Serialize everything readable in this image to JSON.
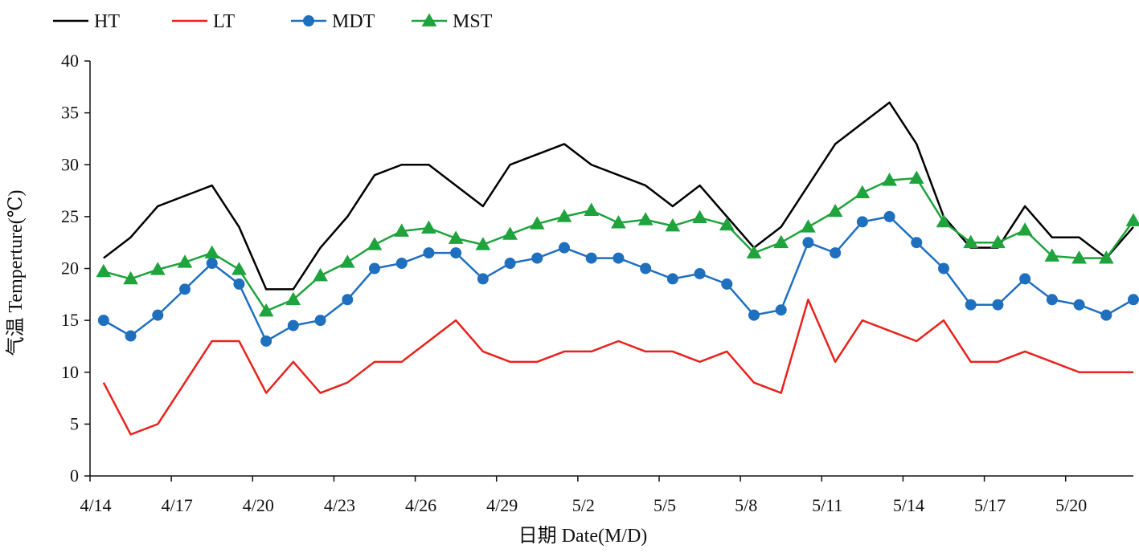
{
  "chart_data": {
    "type": "line",
    "xlabel": "日期 Date(M/D)",
    "ylabel": "气温 Temperture(℃)",
    "ylim": [
      0,
      40
    ],
    "yticks": [
      0,
      5,
      10,
      15,
      20,
      25,
      30,
      35,
      40
    ],
    "grid": false,
    "legend_position": "top-left",
    "x": [
      "4/14",
      "4/15",
      "4/16",
      "4/17",
      "4/18",
      "4/19",
      "4/20",
      "4/21",
      "4/22",
      "4/23",
      "4/24",
      "4/25",
      "4/26",
      "4/27",
      "4/28",
      "4/29",
      "4/30",
      "5/1",
      "5/2",
      "5/3",
      "5/4",
      "5/5",
      "5/6",
      "5/7",
      "5/8",
      "5/9",
      "5/10",
      "5/11",
      "5/12",
      "5/13",
      "5/14",
      "5/15",
      "5/16",
      "5/17",
      "5/18",
      "5/19",
      "5/20",
      "5/21",
      "5/22"
    ],
    "x_tick_labels": [
      "4/14",
      "4/17",
      "4/20",
      "4/23",
      "4/26",
      "4/29",
      "5/2",
      "5/5",
      "5/8",
      "5/11",
      "5/14",
      "5/17",
      "5/20"
    ],
    "series": [
      {
        "name": "HT",
        "color": "#000000",
        "marker": "none",
        "values": [
          21,
          23,
          26,
          27,
          28,
          24,
          18,
          18,
          22,
          25,
          29,
          30,
          30,
          28,
          26,
          30,
          31,
          32,
          30,
          29,
          28,
          26,
          28,
          25,
          22,
          24,
          28,
          32,
          34,
          36,
          32,
          25,
          22,
          22,
          26,
          23,
          23,
          21,
          24
        ]
      },
      {
        "name": "LT",
        "color": "#e8221c",
        "marker": "none",
        "values": [
          9,
          4,
          5,
          9,
          13,
          13,
          8,
          11,
          8,
          9,
          11,
          11,
          13,
          15,
          12,
          11,
          11,
          12,
          12,
          13,
          12,
          12,
          11,
          12,
          9,
          8,
          17,
          11,
          15,
          14,
          13,
          15,
          11,
          11,
          12,
          11,
          10,
          10,
          10
        ]
      },
      {
        "name": "MDT",
        "color": "#1f6fbf",
        "marker": "circle",
        "values": [
          15,
          13.5,
          15.5,
          18,
          20.5,
          18.5,
          13,
          14.5,
          15,
          17,
          20,
          20.5,
          21.5,
          21.5,
          19,
          20.5,
          21,
          22,
          21,
          21,
          20,
          19,
          19.5,
          18.5,
          15.5,
          16,
          22.5,
          21.5,
          24.5,
          25,
          22.5,
          20,
          16.5,
          16.5,
          19,
          17,
          16.5,
          15.5,
          17
        ]
      },
      {
        "name": "MST",
        "color": "#1fa33c",
        "marker": "triangle",
        "values": [
          19.7,
          19,
          19.9,
          20.6,
          21.5,
          19.9,
          15.9,
          17,
          19.3,
          20.6,
          22.3,
          23.6,
          23.9,
          22.9,
          22.3,
          23.3,
          24.3,
          25,
          25.6,
          24.4,
          24.7,
          24.1,
          24.9,
          24.2,
          21.5,
          22.5,
          24,
          25.5,
          27.3,
          28.5,
          28.7,
          24.5,
          22.5,
          22.5,
          23.7,
          21.2,
          21,
          21,
          24.6
        ]
      }
    ]
  }
}
